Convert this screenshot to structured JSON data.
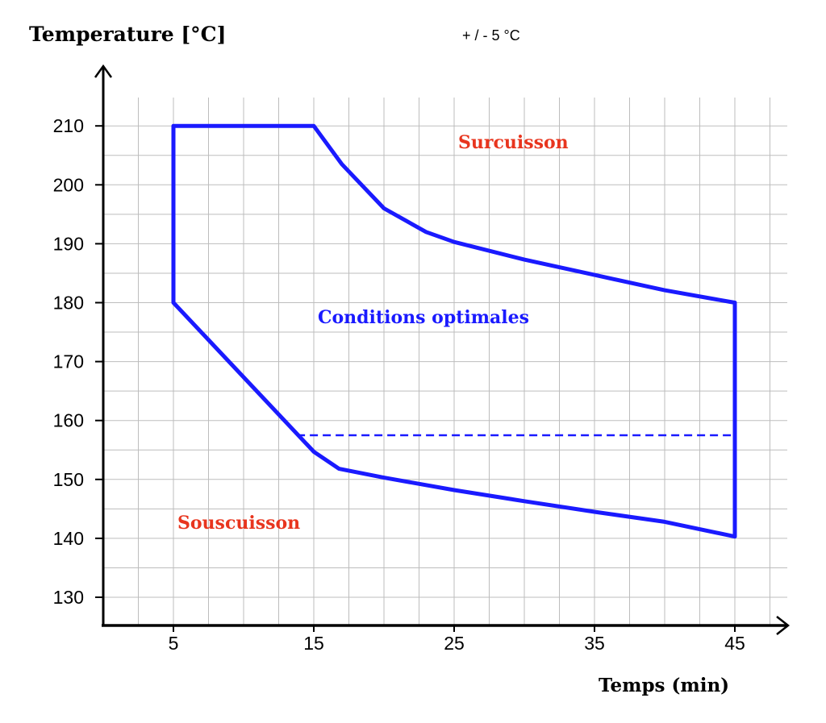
{
  "chart_data": {
    "type": "line",
    "ylabel": "Temperature [°C]",
    "xlabel": "Temps (min)",
    "tolerance_label": "+ / - 5 °C",
    "xlim": [
      0,
      50
    ],
    "ylim": [
      125,
      215
    ],
    "x_ticks": [
      5,
      15,
      25,
      35,
      45
    ],
    "y_ticks": [
      130,
      140,
      150,
      160,
      170,
      180,
      190,
      200,
      210
    ],
    "grid": true,
    "region_labels": [
      {
        "name": "surcuisson",
        "text": "Surcuisson",
        "color": "#e8351e"
      },
      {
        "name": "conditions-optimales",
        "text": "Conditions optimales",
        "color": "#1a1aff"
      },
      {
        "name": "souscuisson",
        "text": "Souscuisson",
        "color": "#e8351e"
      }
    ],
    "series": [
      {
        "key": "optimal-zone-boundary",
        "style": "solid",
        "color": "#1a1aff",
        "points": [
          [
            5,
            180
          ],
          [
            5,
            210
          ],
          [
            15,
            210
          ],
          [
            17,
            203.5
          ],
          [
            20,
            196
          ],
          [
            23,
            192
          ],
          [
            25,
            190.3
          ],
          [
            30,
            187.3
          ],
          [
            35,
            184.7
          ],
          [
            40,
            182.1
          ],
          [
            45,
            180
          ],
          [
            45,
            140.3
          ],
          [
            40,
            142.8
          ],
          [
            35,
            144.5
          ],
          [
            30,
            146.3
          ],
          [
            25,
            148.2
          ],
          [
            20,
            150.3
          ],
          [
            16.8,
            151.8
          ],
          [
            15,
            154.7
          ],
          [
            5,
            180
          ]
        ]
      },
      {
        "key": "reference-line",
        "style": "dashed",
        "color": "#1a1aff",
        "points": [
          [
            13.8,
            157.5
          ],
          [
            45,
            157.5
          ]
        ]
      }
    ]
  }
}
